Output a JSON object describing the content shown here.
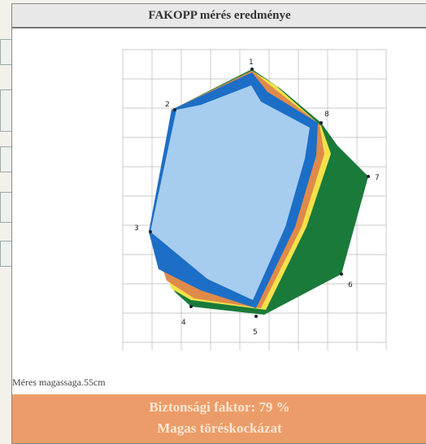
{
  "window": {
    "title": "FAKOPP mérés eredménye"
  },
  "plot": {
    "point_labels": [
      "1",
      "2",
      "8",
      "7",
      "3",
      "6",
      "4",
      "5"
    ]
  },
  "caption": "Méres magassaga.55cm",
  "result": {
    "safety_line": "Biztonsági faktor: 79 %",
    "risk_line": "Magas töréskockázat"
  },
  "colors": {
    "sound_wood": "#a6cdef",
    "zone_blue": "#1d6ec6",
    "zone_orange": "#e08a4a",
    "zone_yellow": "#f4e24a",
    "zone_green": "#1a7a3a",
    "banner": "#ec9c68"
  }
}
